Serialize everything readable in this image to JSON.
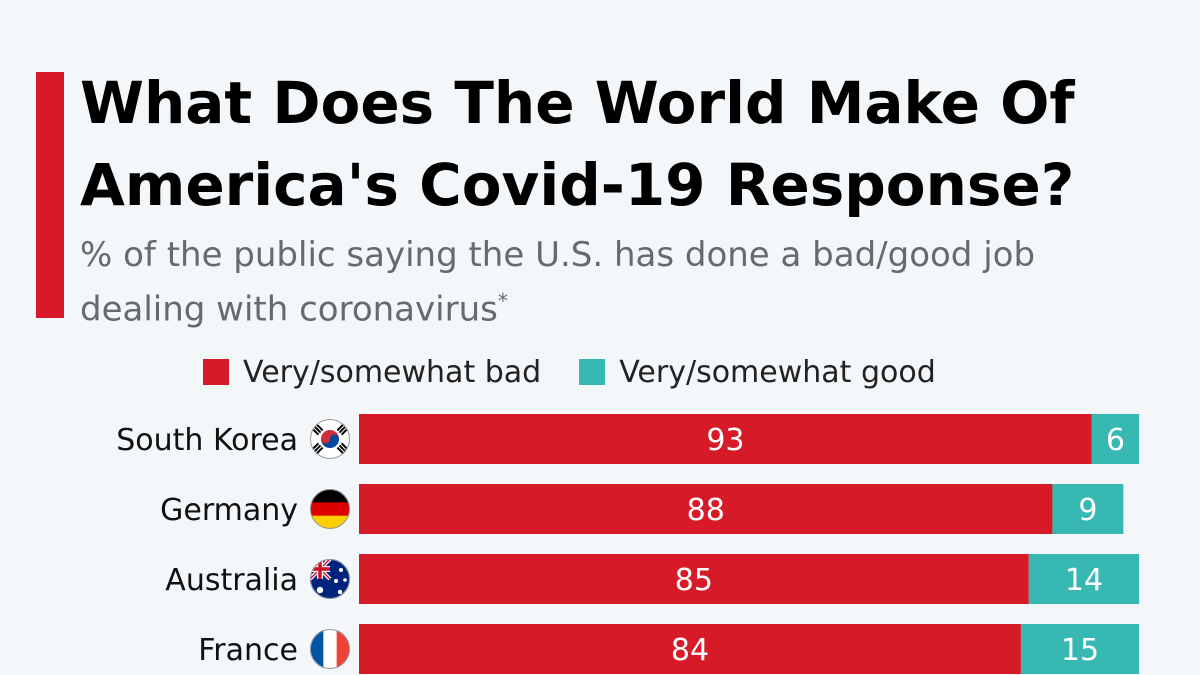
{
  "header": {
    "title_line1": "What Does The World Make Of",
    "title_line2": "America's Covid-19 Response?",
    "subtitle_line1": "% of the public saying the U.S. has done a bad/good job",
    "subtitle_line2": "dealing with coronavirus",
    "subtitle_marker": "*"
  },
  "colors": {
    "bad": "#d71a28",
    "good": "#38b8b2",
    "accent": "#d71a28"
  },
  "chart_data": {
    "type": "bar",
    "orientation": "horizontal",
    "stacked": true,
    "categories": [
      "South Korea",
      "Germany",
      "Australia",
      "France"
    ],
    "flags": [
      "south-korea-flag-icon",
      "germany-flag-icon",
      "australia-flag-icon",
      "france-flag-icon"
    ],
    "series": [
      {
        "name": "Very/somewhat bad",
        "values": [
          93,
          88,
          85,
          84
        ]
      },
      {
        "name": "Very/somewhat good",
        "values": [
          6,
          9,
          14,
          15
        ]
      }
    ],
    "xlim": [
      0,
      100
    ],
    "legend_position": "top",
    "grid": false
  }
}
